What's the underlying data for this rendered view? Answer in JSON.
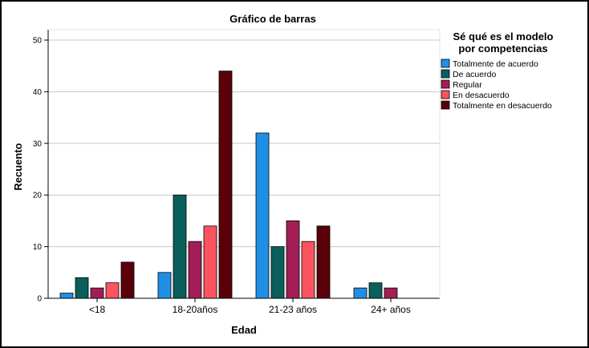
{
  "chart_data": {
    "type": "bar",
    "title": "Gráfico de barras",
    "xlabel": "Edad",
    "ylabel": "Recuento",
    "ylim": [
      0,
      50
    ],
    "yticks": [
      0,
      10,
      20,
      30,
      40,
      50
    ],
    "grid": true,
    "categories": [
      "<18",
      "18-20años",
      "21-23 años",
      "24+ años"
    ],
    "legend": {
      "title_lines": [
        "Sé qué es el modelo",
        "por competencias"
      ],
      "placement": "right"
    },
    "series": [
      {
        "name": "Totalmente de acuerdo",
        "color": "#1f8fe6",
        "values": [
          1,
          5,
          32,
          2
        ]
      },
      {
        "name": "De acuerdo",
        "color": "#0b5f5a",
        "values": [
          4,
          20,
          10,
          3
        ]
      },
      {
        "name": "Regular",
        "color": "#a31e56",
        "values": [
          2,
          11,
          15,
          2
        ]
      },
      {
        "name": "En desacuerdo",
        "color": "#fb535f",
        "values": [
          3,
          14,
          11,
          0
        ]
      },
      {
        "name": "Totalmente en desacuerdo",
        "color": "#5a0008",
        "values": [
          7,
          44,
          14,
          0
        ]
      }
    ]
  }
}
